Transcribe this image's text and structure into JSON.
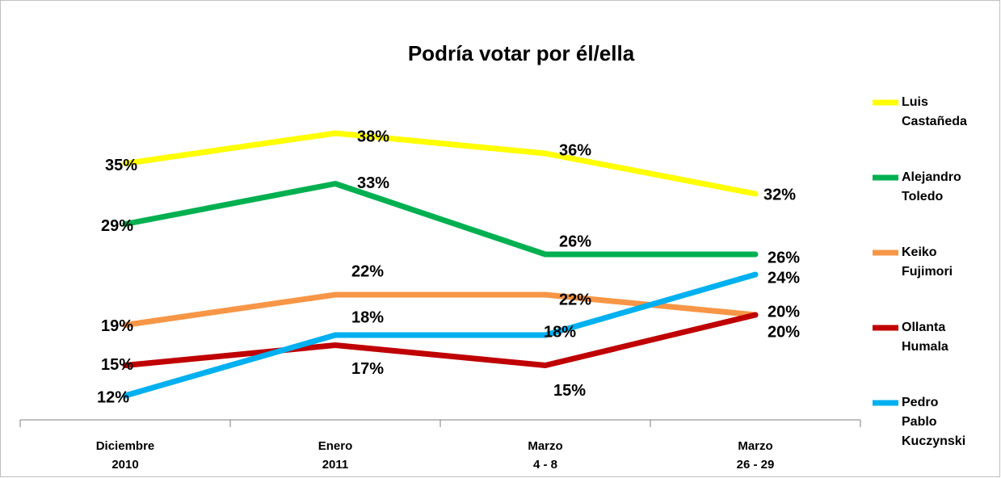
{
  "chart_data": {
    "type": "line",
    "title": "Podría votar por él/ella",
    "categories": [
      "Diciembre\n2010",
      "Enero\n2011",
      "Marzo\n4 - 8",
      "Marzo\n26 - 29"
    ],
    "series": [
      {
        "name": "Luis Castañeda",
        "color": "#ffff00",
        "values": [
          35,
          38,
          36,
          32
        ],
        "value_labels": [
          "35%",
          "38%",
          "36%",
          "32%"
        ]
      },
      {
        "name": "Alejandro Toledo",
        "color": "#00b050",
        "values": [
          29,
          33,
          26,
          26
        ],
        "value_labels": [
          "29%",
          "33%",
          "26%",
          "26%"
        ]
      },
      {
        "name": "Keiko Fujimori",
        "color": "#f79646",
        "values": [
          19,
          22,
          22,
          20
        ],
        "value_labels": [
          "19%",
          "22%",
          "22%",
          "20%"
        ]
      },
      {
        "name": "Ollanta Humala",
        "color": "#c00000",
        "values": [
          15,
          17,
          15,
          20
        ],
        "value_labels": [
          "15%",
          "17%",
          "15%",
          "20%"
        ]
      },
      {
        "name": "Pedro Pablo Kuczynski",
        "color": "#00b0f0",
        "values": [
          12,
          18,
          18,
          24
        ],
        "value_labels": [
          "12%",
          "18%",
          "18%",
          "24%"
        ]
      }
    ],
    "legend": "right"
  }
}
